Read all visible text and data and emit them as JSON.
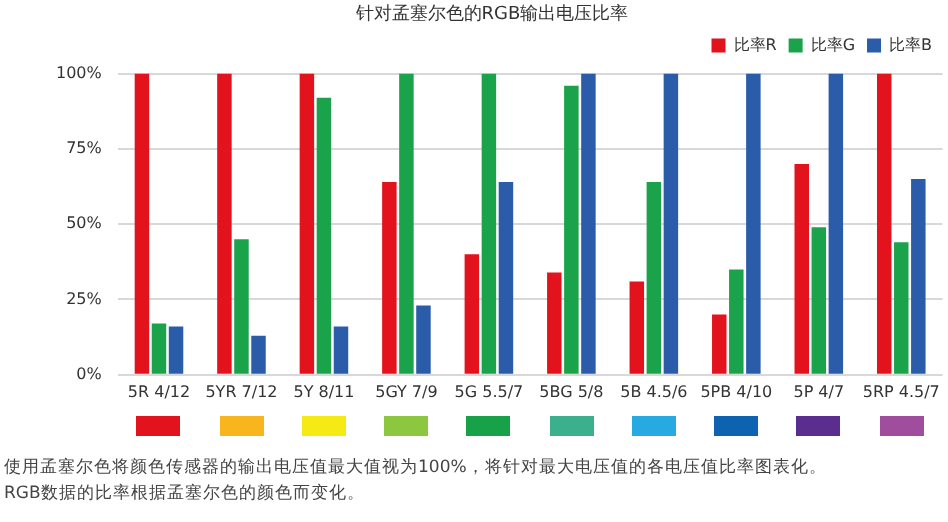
{
  "chart_data": {
    "type": "bar",
    "title": "针对孟塞尔色的RGB输出电压比率",
    "categories": [
      "5R 4/12",
      "5YR 7/12",
      "5Y 8/11",
      "5GY 7/9",
      "5G 5.5/7",
      "5BG 5/8",
      "5B 4.5/6",
      "5PB 4/10",
      "5P 4/7",
      "5RP 4.5/7"
    ],
    "series": [
      {
        "name": "比率R",
        "color": "#e3131e",
        "values": [
          100,
          100,
          100,
          64,
          40,
          34,
          31,
          20,
          70,
          100
        ]
      },
      {
        "name": "比率G",
        "color": "#1aa34a",
        "values": [
          17,
          45,
          92,
          100,
          100,
          96,
          64,
          35,
          49,
          44
        ]
      },
      {
        "name": "比率B",
        "color": "#2a5caa",
        "values": [
          16,
          13,
          16,
          23,
          64,
          100,
          100,
          100,
          100,
          65
        ]
      }
    ],
    "ylim": [
      0,
      100
    ],
    "yticks": [
      {
        "value": 0,
        "label": "0%"
      },
      {
        "value": 25,
        "label": "25%"
      },
      {
        "value": 50,
        "label": "50%"
      },
      {
        "value": 75,
        "label": "75%"
      },
      {
        "value": 100,
        "label": "100%"
      }
    ],
    "grid": "y",
    "legend": "top right",
    "annotations": [
      "使用孟塞尔色将颜色传感器的输出电压值最大值视为100%，将针对最大电压值的各电压值比率图表化。",
      "RGB数据的比率根据孟塞尔色的颜色而变化。"
    ]
  }
}
